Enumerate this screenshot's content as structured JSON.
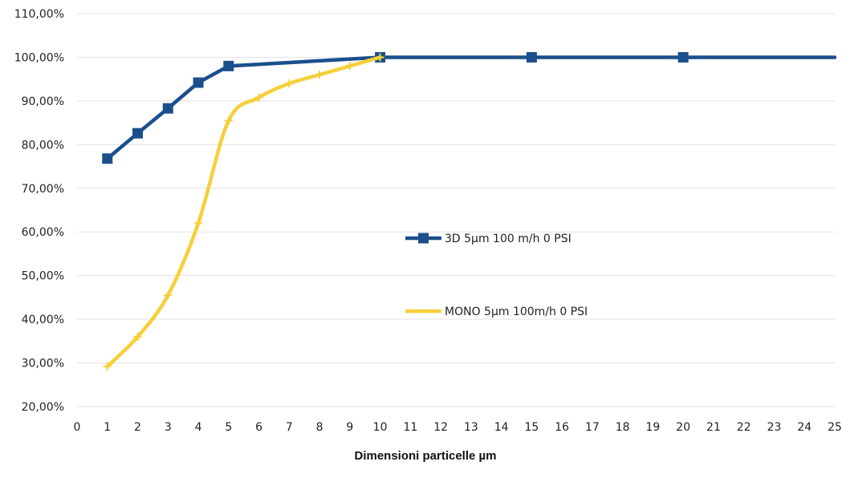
{
  "chart_data": {
    "type": "line",
    "title": "",
    "xlabel": "Dimensioni particelle µm",
    "ylabel": "",
    "xlim": [
      0,
      25
    ],
    "ylim": [
      20,
      110
    ],
    "x_ticks": [
      "0",
      "1",
      "2",
      "3",
      "4",
      "5",
      "6",
      "7",
      "8",
      "9",
      "10",
      "11",
      "12",
      "13",
      "14",
      "15",
      "16",
      "17",
      "18",
      "19",
      "20",
      "21",
      "22",
      "23",
      "24",
      "25"
    ],
    "y_ticks": [
      {
        "value": 20,
        "label": "20,00%"
      },
      {
        "value": 30,
        "label": "30,00%"
      },
      {
        "value": 40,
        "label": "40,00%"
      },
      {
        "value": 50,
        "label": "50,00%"
      },
      {
        "value": 60,
        "label": "60,00%"
      },
      {
        "value": 70,
        "label": "70,00%"
      },
      {
        "value": 80,
        "label": "80,00%"
      },
      {
        "value": 90,
        "label": "90,00%"
      },
      {
        "value": 100,
        "label": "100,00%"
      },
      {
        "value": 110,
        "label": "110,00%"
      }
    ],
    "grid": "horizontal",
    "legend_position": "center-right",
    "series": [
      {
        "name": "3D 5µm  100 m/h  0 PSI",
        "color": "#1a4f8c",
        "marker": "square",
        "x": [
          1,
          2,
          3,
          4,
          5,
          10,
          15,
          20,
          25
        ],
        "y": [
          76.8,
          82.6,
          88.3,
          94.2,
          98.0,
          100.0,
          100.0,
          100.0,
          100.0
        ],
        "marker_x": [
          1,
          2,
          3,
          4,
          5,
          10,
          15,
          20
        ]
      },
      {
        "name": "MONO  5µm 100m/h  0 PSI",
        "color": "#f6cf3a",
        "marker": "plus",
        "x": [
          1,
          2,
          3,
          4,
          5,
          6,
          7,
          8,
          9,
          10
        ],
        "y": [
          29.2,
          36.0,
          45.5,
          62.0,
          85.5,
          90.8,
          94.0,
          96.0,
          98.0,
          100.0
        ],
        "marker_x": [
          1,
          2,
          3,
          4,
          5,
          6,
          7,
          8,
          9,
          10
        ]
      }
    ]
  }
}
